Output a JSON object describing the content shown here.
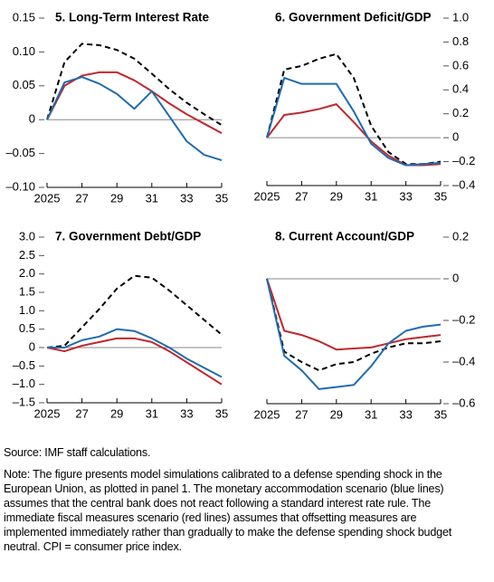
{
  "chart_data": [
    {
      "type": "line",
      "title": "5. Long-Term Interest Rate",
      "y_axis_side": "left",
      "zero_line": true,
      "x": [
        2025,
        2026,
        2027,
        2028,
        2029,
        2030,
        2031,
        2032,
        2033,
        2034,
        2035
      ],
      "xlim": [
        2025,
        2035
      ],
      "xticks": [
        2025,
        {
          "value": 2027,
          "label": "27"
        },
        {
          "value": 2029,
          "label": "29"
        },
        {
          "value": 2031,
          "label": "31"
        },
        {
          "value": 2033,
          "label": "33"
        },
        {
          "value": 2035,
          "label": "35"
        }
      ],
      "ylim": [
        -0.1,
        0.15
      ],
      "yticks": [
        {
          "value": -0.1,
          "label": "–0.10"
        },
        {
          "value": -0.05,
          "label": "–0.05"
        },
        0,
        0.05,
        {
          "value": 0.1,
          "label": "0.10"
        },
        0.15
      ],
      "series": [
        {
          "color": "#000000",
          "style": "dashed",
          "values": [
            0,
            0.085,
            0.112,
            0.11,
            0.103,
            0.09,
            0.068,
            0.045,
            0.025,
            0.008,
            -0.008
          ]
        },
        {
          "color": "#c0282d",
          "style": "solid",
          "values": [
            0,
            0.05,
            0.065,
            0.07,
            0.07,
            0.058,
            0.042,
            0.024,
            0.008,
            -0.006,
            -0.02
          ]
        },
        {
          "color": "#1f6bb0",
          "style": "solid",
          "values": [
            0,
            0.055,
            0.063,
            0.053,
            0.038,
            0.016,
            0.042,
            0.005,
            -0.032,
            -0.052,
            -0.06
          ]
        }
      ]
    },
    {
      "type": "line",
      "title": "6. Government Deficit/GDP",
      "y_axis_side": "right",
      "zero_line": true,
      "x": [
        2025,
        2026,
        2027,
        2028,
        2029,
        2030,
        2031,
        2032,
        2033,
        2034,
        2035
      ],
      "xlim": [
        2025,
        2035
      ],
      "xticks": [
        2025,
        {
          "value": 2027,
          "label": "27"
        },
        {
          "value": 2029,
          "label": "29"
        },
        {
          "value": 2031,
          "label": "31"
        },
        {
          "value": 2033,
          "label": "33"
        },
        {
          "value": 2035,
          "label": "35"
        }
      ],
      "ylim": [
        -0.4,
        1.0
      ],
      "yticks": [
        {
          "value": -0.4,
          "label": "–0.4"
        },
        {
          "value": -0.2,
          "label": "–0.2"
        },
        0,
        0.2,
        0.4,
        0.6,
        0.8,
        {
          "value": 1.0,
          "label": "1.0"
        }
      ],
      "series": [
        {
          "color": "#000000",
          "style": "dashed",
          "values": [
            0,
            0.57,
            0.6,
            0.66,
            0.7,
            0.5,
            0.1,
            -0.12,
            -0.22,
            -0.22,
            -0.2
          ]
        },
        {
          "color": "#c0282d",
          "style": "solid",
          "values": [
            0,
            0.19,
            0.21,
            0.24,
            0.28,
            0.13,
            -0.03,
            -0.15,
            -0.23,
            -0.23,
            -0.22
          ]
        },
        {
          "color": "#1f6bb0",
          "style": "solid",
          "values": [
            0,
            0.5,
            0.45,
            0.45,
            0.45,
            0.22,
            -0.05,
            -0.17,
            -0.23,
            -0.22,
            -0.21
          ]
        }
      ]
    },
    {
      "type": "line",
      "title": "7. Government Debt/GDP",
      "y_axis_side": "left",
      "zero_line": true,
      "x": [
        2025,
        2026,
        2027,
        2028,
        2029,
        2030,
        2031,
        2032,
        2033,
        2034,
        2035
      ],
      "xlim": [
        2025,
        2035
      ],
      "xticks": [
        2025,
        {
          "value": 2027,
          "label": "27"
        },
        {
          "value": 2029,
          "label": "29"
        },
        {
          "value": 2031,
          "label": "31"
        },
        {
          "value": 2033,
          "label": "33"
        },
        {
          "value": 2035,
          "label": "35"
        }
      ],
      "ylim": [
        -1.5,
        3.0
      ],
      "yticks": [
        {
          "value": -1.5,
          "label": "–1.5"
        },
        {
          "value": -1.0,
          "label": "–1.0"
        },
        {
          "value": -0.5,
          "label": "–0.5"
        },
        0,
        0.5,
        {
          "value": 1.0,
          "label": "1.0"
        },
        1.5,
        {
          "value": 2.0,
          "label": "2.0"
        },
        2.5,
        {
          "value": 3.0,
          "label": "3.0"
        }
      ],
      "series": [
        {
          "color": "#000000",
          "style": "dashed",
          "values": [
            0,
            0.05,
            0.55,
            1.05,
            1.6,
            1.95,
            1.9,
            1.55,
            1.15,
            0.75,
            0.35
          ]
        },
        {
          "color": "#c0282d",
          "style": "solid",
          "values": [
            0,
            -0.1,
            0.05,
            0.15,
            0.25,
            0.25,
            0.15,
            -0.1,
            -0.4,
            -0.7,
            -1.0
          ]
        },
        {
          "color": "#1f6bb0",
          "style": "solid",
          "values": [
            0,
            0.0,
            0.2,
            0.3,
            0.5,
            0.45,
            0.25,
            0.0,
            -0.3,
            -0.55,
            -0.8
          ]
        }
      ]
    },
    {
      "type": "line",
      "title": "8. Current Account/GDP",
      "y_axis_side": "right",
      "zero_line": true,
      "x": [
        2025,
        2026,
        2027,
        2028,
        2029,
        2030,
        2031,
        2032,
        2033,
        2034,
        2035
      ],
      "xlim": [
        2025,
        2035
      ],
      "xticks": [
        2025,
        {
          "value": 2027,
          "label": "27"
        },
        {
          "value": 2029,
          "label": "29"
        },
        {
          "value": 2031,
          "label": "31"
        },
        {
          "value": 2033,
          "label": "33"
        },
        {
          "value": 2035,
          "label": "35"
        }
      ],
      "ylim": [
        -0.6,
        0.2
      ],
      "yticks": [
        {
          "value": -0.6,
          "label": "–0.6"
        },
        {
          "value": -0.4,
          "label": "–0.4"
        },
        {
          "value": -0.2,
          "label": "–0.2"
        },
        0,
        0.2
      ],
      "series": [
        {
          "color": "#000000",
          "style": "dashed",
          "values": [
            0,
            -0.35,
            -0.4,
            -0.44,
            -0.41,
            -0.4,
            -0.36,
            -0.33,
            -0.31,
            -0.31,
            -0.3
          ]
        },
        {
          "color": "#c0282d",
          "style": "solid",
          "values": [
            0,
            -0.25,
            -0.27,
            -0.3,
            -0.34,
            -0.335,
            -0.33,
            -0.31,
            -0.29,
            -0.28,
            -0.27
          ]
        },
        {
          "color": "#1f6bb0",
          "style": "solid",
          "values": [
            0,
            -0.37,
            -0.44,
            -0.53,
            -0.52,
            -0.51,
            -0.42,
            -0.31,
            -0.25,
            -0.23,
            -0.22
          ]
        }
      ]
    }
  ],
  "source": "Source: IMF staff calculations.",
  "note": "Note: The figure presents model simulations calibrated to a defense spending shock in the European Union, as plotted in panel 1. The monetary accommodation scenario (blue lines) assumes that the central bank does not react following a standard interest rate rule. The immediate fiscal measures scenario (red lines) assumes that offsetting measures are implemented immediately rather than gradually to make the defense spending shock budget neutral. CPI = consumer price index."
}
